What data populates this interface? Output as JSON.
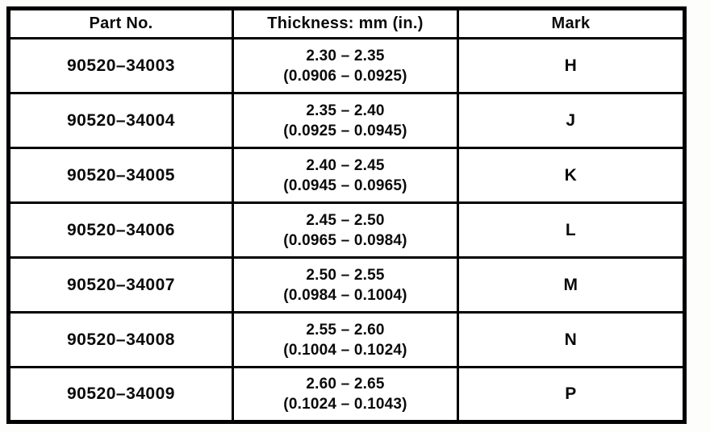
{
  "table": {
    "columns": [
      "Part No.",
      "Thickness: mm (in.)",
      "Mark"
    ],
    "rows": [
      {
        "part_no": "90520–34003",
        "thickness_mm": "2.30 – 2.35",
        "thickness_in": "(0.0906 – 0.0925)",
        "mark": "H"
      },
      {
        "part_no": "90520–34004",
        "thickness_mm": "2.35 – 2.40",
        "thickness_in": "(0.0925 – 0.0945)",
        "mark": "J"
      },
      {
        "part_no": "90520–34005",
        "thickness_mm": "2.40 – 2.45",
        "thickness_in": "(0.0945 – 0.0965)",
        "mark": "K"
      },
      {
        "part_no": "90520–34006",
        "thickness_mm": "2.45 – 2.50",
        "thickness_in": "(0.0965 – 0.0984)",
        "mark": "L"
      },
      {
        "part_no": "90520–34007",
        "thickness_mm": "2.50 – 2.55",
        "thickness_in": "(0.0984 – 0.1004)",
        "mark": "M"
      },
      {
        "part_no": "90520–34008",
        "thickness_mm": "2.55 – 2.60",
        "thickness_in": "(0.1004 – 0.1024)",
        "mark": "N"
      },
      {
        "part_no": "90520–34009",
        "thickness_mm": "2.60 – 2.65",
        "thickness_in": "(0.1024 – 0.1043)",
        "mark": "P"
      }
    ],
    "border_color": "#000000",
    "background_color": "#ffffff"
  }
}
